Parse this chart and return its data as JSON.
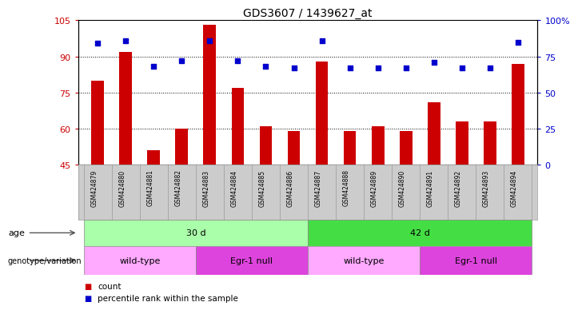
{
  "title": "GDS3607 / 1439627_at",
  "samples": [
    "GSM424879",
    "GSM424880",
    "GSM424881",
    "GSM424882",
    "GSM424883",
    "GSM424884",
    "GSM424885",
    "GSM424886",
    "GSM424887",
    "GSM424888",
    "GSM424889",
    "GSM424890",
    "GSM424891",
    "GSM424892",
    "GSM424893",
    "GSM424894"
  ],
  "counts": [
    80,
    92,
    51,
    60,
    103,
    77,
    61,
    59,
    88,
    59,
    61,
    59,
    71,
    63,
    63,
    87
  ],
  "percentiles": [
    84,
    86,
    68,
    72,
    86,
    72,
    68,
    67,
    86,
    67,
    67,
    67,
    71,
    67,
    67,
    85
  ],
  "ylim_left": [
    45,
    105
  ],
  "ylim_right": [
    0,
    100
  ],
  "yticks_left": [
    45,
    60,
    75,
    90,
    105
  ],
  "yticks_right": [
    0,
    25,
    50,
    75,
    100
  ],
  "ytick_labels_right": [
    "0",
    "25",
    "50",
    "75",
    "100%"
  ],
  "bar_color": "#cc0000",
  "dot_color": "#0000cc",
  "grid_color": "#000000",
  "age_groups": [
    {
      "label": "30 d",
      "start": 0,
      "end": 8,
      "color": "#aaffaa"
    },
    {
      "label": "42 d",
      "start": 8,
      "end": 16,
      "color": "#44dd44"
    }
  ],
  "genotype_groups": [
    {
      "label": "wild-type",
      "start": 0,
      "end": 4,
      "color": "#ffaaff"
    },
    {
      "label": "Egr-1 null",
      "start": 4,
      "end": 8,
      "color": "#dd44dd"
    },
    {
      "label": "wild-type",
      "start": 8,
      "end": 12,
      "color": "#ffaaff"
    },
    {
      "label": "Egr-1 null",
      "start": 12,
      "end": 16,
      "color": "#dd44dd"
    }
  ],
  "legend_count_label": "count",
  "legend_percentile_label": "percentile rank within the sample",
  "bar_color_hex": "#cc0000",
  "dot_color_hex": "#0000cc",
  "tick_label_bg": "#cccccc",
  "sample_divider_color": "#999999"
}
